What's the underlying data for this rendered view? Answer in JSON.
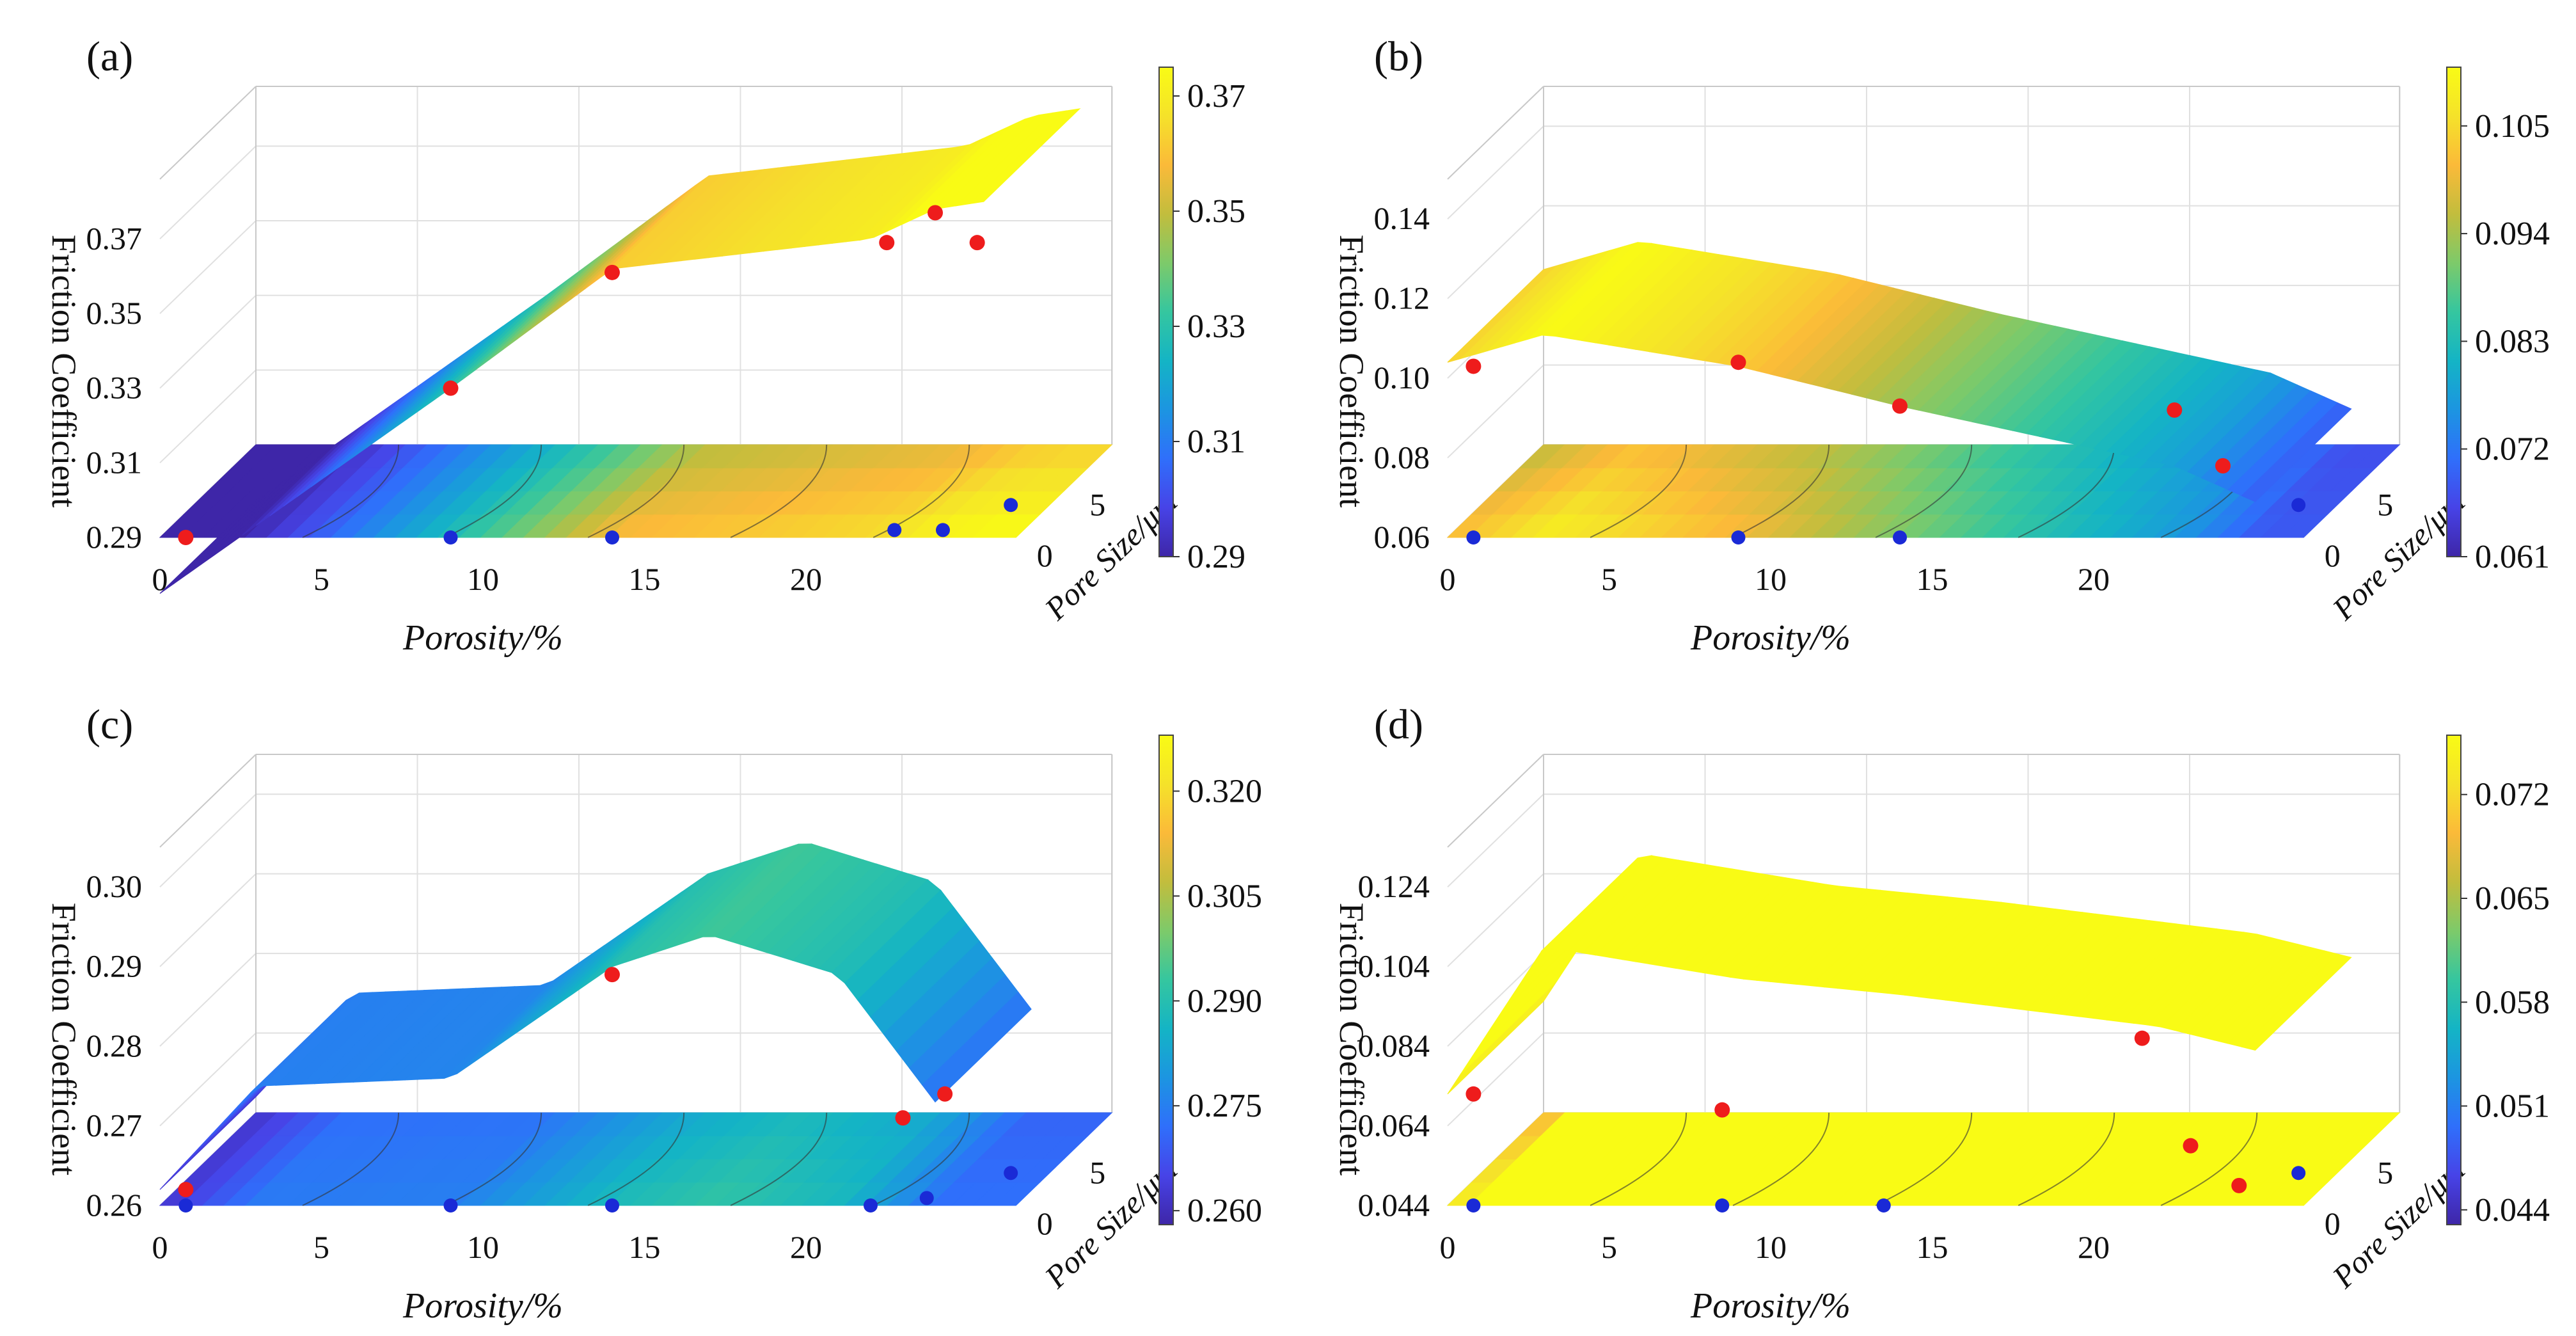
{
  "chart_data": [
    {
      "type": "surface",
      "panel_label": "(a)",
      "xlabel": "Porosity/%",
      "ylabel": "Pore Size/μm",
      "zlabel": "Friction Coefficient",
      "x_ticks": [
        0,
        5,
        10,
        15,
        20
      ],
      "y_ticks": [
        0,
        5
      ],
      "z_ticks": [
        0.29,
        0.31,
        0.33,
        0.35,
        0.37
      ],
      "zlim": [
        0.29,
        0.386
      ],
      "colorbar_ticks": [
        "0.29",
        "0.31",
        "0.33",
        "0.35",
        "0.37"
      ],
      "colorbar_range": [
        0.29,
        0.375
      ],
      "surface": {
        "x": [
          0,
          9,
          14,
          22,
          24,
          25.5
        ],
        "z": [
          0.275,
          0.33,
          0.362,
          0.37,
          0.378,
          0.38
        ]
      },
      "measured_points": [
        {
          "x": 0.8,
          "z": 0.29
        },
        {
          "x": 9,
          "z": 0.33
        },
        {
          "x": 14,
          "z": 0.361
        },
        {
          "x": 22.5,
          "z": 0.369
        },
        {
          "x": 24,
          "z": 0.377
        },
        {
          "x": 25.3,
          "z": 0.369
        }
      ],
      "projected_points_x": [
        0.8,
        9,
        14,
        22.5,
        24,
        25.3
      ]
    },
    {
      "type": "surface",
      "panel_label": "(b)",
      "xlabel": "Porosity/%",
      "ylabel": "Pore Size/μm",
      "zlabel": "Friction Coefficient",
      "x_ticks": [
        0,
        5,
        10,
        15,
        20
      ],
      "y_ticks": [
        0,
        5
      ],
      "z_ticks": [
        0.06,
        0.08,
        0.1,
        0.12,
        0.14
      ],
      "z_tick_labels": [
        "0.06",
        "0.08",
        "0.10",
        "0.12",
        "0.14"
      ],
      "zlim": [
        0.06,
        0.15
      ],
      "colorbar_ticks": [
        "0.061",
        "0.072",
        "0.083",
        "0.094",
        "0.105"
      ],
      "colorbar_range": [
        0.061,
        0.111
      ],
      "surface": {
        "x": [
          0,
          3,
          9,
          14,
          22.5,
          25
        ],
        "z": [
          0.104,
          0.111,
          0.103,
          0.093,
          0.078,
          0.069
        ]
      },
      "measured_points": [
        {
          "x": 0.8,
          "z": 0.103
        },
        {
          "x": 9,
          "z": 0.104
        },
        {
          "x": 14,
          "z": 0.093
        },
        {
          "x": 22.5,
          "z": 0.092
        },
        {
          "x": 24,
          "z": 0.078
        }
      ],
      "projected_points_x": [
        0.8,
        9,
        14,
        25.3
      ]
    },
    {
      "type": "surface",
      "panel_label": "(c)",
      "xlabel": "Porosity/%",
      "ylabel": "Pore Size/μm",
      "zlabel": "Friction Coefficient",
      "x_ticks": [
        0,
        5,
        10,
        15,
        20
      ],
      "y_ticks": [
        0,
        5
      ],
      "z_ticks": [
        0.26,
        0.27,
        0.28,
        0.29,
        0.3
      ],
      "z_tick_labels": [
        "0.26",
        "0.27",
        "0.28",
        "0.29",
        "0.30"
      ],
      "zlim": [
        0.26,
        0.305
      ],
      "colorbar_ticks": [
        "0.260",
        "0.275",
        "0.290",
        "0.305",
        "0.320"
      ],
      "colorbar_range": [
        0.258,
        0.328
      ],
      "surface": {
        "x": [
          0,
          3,
          9,
          14,
          17,
          21,
          24
        ],
        "z": [
          0.262,
          0.275,
          0.276,
          0.29,
          0.294,
          0.289,
          0.273
        ]
      },
      "measured_points": [
        {
          "x": 0.8,
          "z": 0.262
        },
        {
          "x": 14,
          "z": 0.289
        },
        {
          "x": 23,
          "z": 0.271
        },
        {
          "x": 24.3,
          "z": 0.274
        }
      ],
      "projected_points_x": [
        0.8,
        9,
        14,
        22,
        23.5,
        25.3
      ]
    },
    {
      "type": "surface",
      "panel_label": "(d)",
      "xlabel": "Porosity/%",
      "ylabel": "Pore Size/μm",
      "zlabel": "Friction Coefficient",
      "x_ticks": [
        0,
        5,
        10,
        15,
        20
      ],
      "y_ticks": [
        0,
        5
      ],
      "z_ticks": [
        0.044,
        0.064,
        0.084,
        0.104,
        0.124
      ],
      "z_tick_labels": [
        "0.044",
        "0.064",
        "0.084",
        "0.104",
        "0.124"
      ],
      "zlim": [
        0.044,
        0.134
      ],
      "colorbar_ticks": [
        "0.044",
        "0.051",
        "0.058",
        "0.065",
        "0.072"
      ],
      "colorbar_range": [
        0.043,
        0.076
      ],
      "surface": {
        "x": [
          0,
          3,
          9,
          14,
          22,
          25
        ],
        "z": [
          0.072,
          0.109,
          0.101,
          0.097,
          0.089,
          0.083
        ]
      },
      "measured_points": [
        {
          "x": 0.8,
          "z": 0.072
        },
        {
          "x": 8.5,
          "z": 0.068
        },
        {
          "x": 21.5,
          "z": 0.086
        },
        {
          "x": 23,
          "z": 0.059
        },
        {
          "x": 24.5,
          "z": 0.049
        }
      ],
      "projected_points_x": [
        0.8,
        8.5,
        13.5,
        25.3
      ]
    }
  ],
  "colors": {
    "measured": "#ee1c1c",
    "projected": "#1a2ad6",
    "grid": "#e0e0e0",
    "axis": "#8a8a8a",
    "colormap": [
      "#3e26a8",
      "#4743e7",
      "#2f6ffb",
      "#1c95e1",
      "#14b4c5",
      "#35c69f",
      "#7dca6a",
      "#c2bd3d",
      "#fbba39",
      "#f5e22a",
      "#f9fb15"
    ]
  }
}
